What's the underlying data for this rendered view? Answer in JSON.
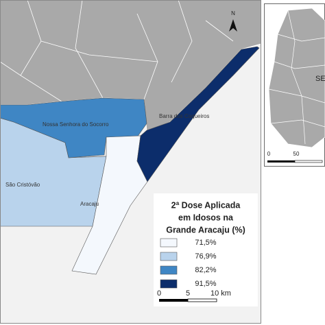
{
  "places": [
    {
      "label": "Nossa Senhora do Socorro",
      "color": "#3f86c4"
    },
    {
      "label": "São Cristóvão",
      "color": "#b9d3ec"
    },
    {
      "label": "Barra dos Coqueiros",
      "color": "#0c2d6b"
    },
    {
      "label": "Aracaju",
      "color": "#f4f8fd"
    }
  ],
  "legend": {
    "title_lines": [
      "2ª Dose Aplicada",
      "em Idosos na",
      "Grande Aracaju (%)"
    ],
    "items": [
      {
        "label": "71,5%",
        "color": "#f4f8fd"
      },
      {
        "label": "76,9%",
        "color": "#b9d3ec"
      },
      {
        "label": "82,2%",
        "color": "#3f86c4"
      },
      {
        "label": "91,5%",
        "color": "#0c2d6b"
      }
    ]
  },
  "scale_bar": {
    "labels": [
      "0",
      "5",
      "10 km"
    ]
  },
  "north": "N",
  "inset": {
    "label": "SE",
    "scale_labels": [
      "0",
      "50"
    ]
  }
}
